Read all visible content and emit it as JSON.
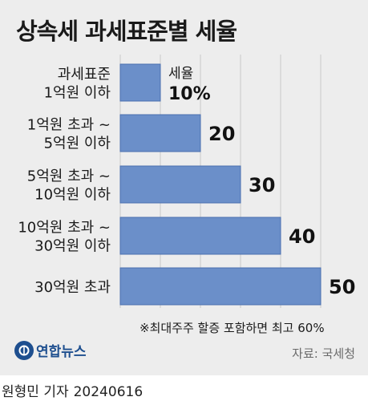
{
  "title": "상속세 과세표준별 세율",
  "note": "※최대주주 할증 포함하면 최고 60%",
  "logo": {
    "name": "연합뉴스"
  },
  "source": "자료: 국세청",
  "byline": {
    "author": "원형민 기자",
    "date": "20240616"
  },
  "colors": {
    "bar": "#6b8fc9",
    "bar_edge": "#4a6fae",
    "panel": "#ededed",
    "logo": "#1e4f8f"
  },
  "chart_data": {
    "type": "bar",
    "orientation": "horizontal",
    "categories": [
      [
        "과세표준",
        "1억원 이하"
      ],
      [
        "1억원 초과 ~",
        "5억원 이하"
      ],
      [
        "5억원 초과 ~",
        "10억원 이하"
      ],
      [
        "10억원 초과 ~",
        "30억원 이하"
      ],
      [
        "30억원 초과"
      ]
    ],
    "values": [
      10,
      20,
      30,
      40,
      50
    ],
    "value_labels": [
      "10%",
      "20",
      "30",
      "40",
      "50"
    ],
    "series_label": "세율",
    "xlim": [
      0,
      50
    ],
    "grid": true
  }
}
